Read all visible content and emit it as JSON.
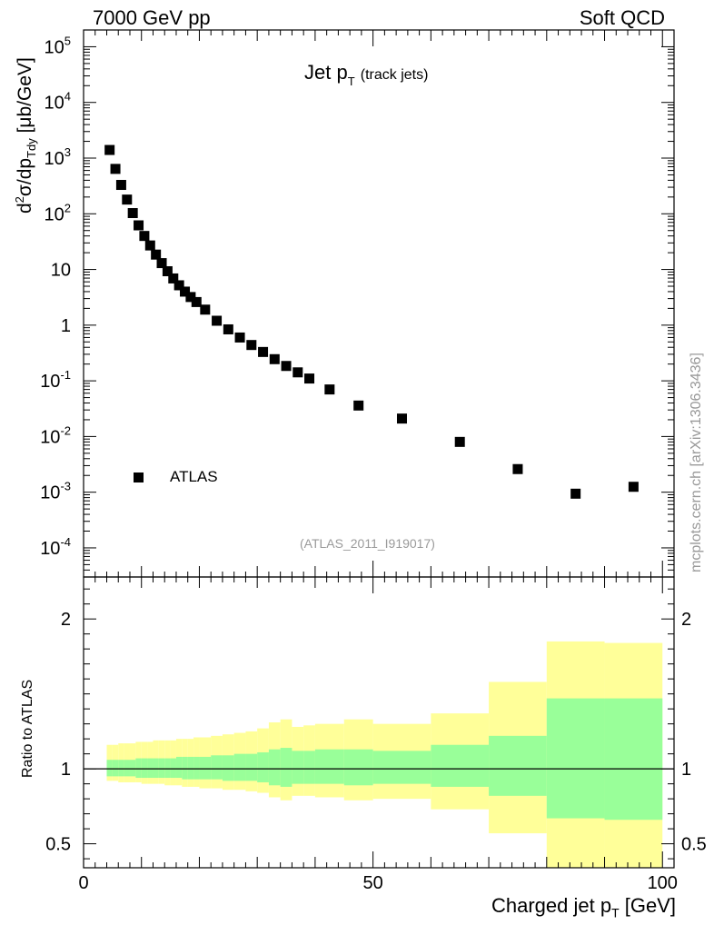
{
  "header": {
    "energy_label": "7000 GeV pp",
    "process_label": "Soft QCD"
  },
  "plot": {
    "title_main": "Jet p",
    "title_sub": "T",
    "title_note": "(track jets)",
    "analysis_id": "(ATLAS_2011_I919017)",
    "legend_entry": "ATLAS",
    "watermark": "mcplots.cern.ch [arXiv:1306.3436]",
    "ylabel_main_prefix": "d",
    "ylabel_main_sup": "2",
    "ylabel_main_mid": "σ/dp",
    "ylabel_main_sub": "Tdy",
    "ylabel_main_suffix": " [μb/GeV]",
    "ylabel_ratio": "Ratio to ATLAS",
    "xlabel_main": "Charged jet p",
    "xlabel_sub": "T",
    "xlabel_suffix": " [GeV]"
  },
  "chart_data": [
    {
      "type": "scatter",
      "title": "Jet pT (track jets)",
      "ylabel": "d²σ/dpTdy [μb/GeV]",
      "yscale": "log",
      "xlim": [
        0,
        102
      ],
      "ylim": [
        3e-05,
        200000
      ],
      "y_ticks": [
        0.0001,
        0.001,
        0.01,
        0.1,
        1,
        10,
        100,
        1000,
        10000,
        100000
      ],
      "y_tick_labels": [
        {
          "base": "10",
          "exp": "-4"
        },
        {
          "base": "10",
          "exp": "-3"
        },
        {
          "base": "10",
          "exp": "-2"
        },
        {
          "base": "10",
          "exp": "-1"
        },
        {
          "base": "1",
          "exp": ""
        },
        {
          "base": "10",
          "exp": ""
        },
        {
          "base": "10",
          "exp": "2"
        },
        {
          "base": "10",
          "exp": "3"
        },
        {
          "base": "10",
          "exp": "4"
        },
        {
          "base": "10",
          "exp": "5"
        }
      ],
      "legend_position": "bottom-left",
      "series": [
        {
          "name": "ATLAS",
          "marker": "square",
          "color": "#000000",
          "x": [
            4.5,
            5.5,
            6.5,
            7.5,
            8.5,
            9.5,
            10.5,
            11.5,
            12.5,
            13.5,
            14.5,
            15.5,
            16.5,
            17.5,
            18.5,
            19.5,
            21,
            23,
            25,
            27,
            29,
            31,
            33,
            35,
            37,
            39,
            42.5,
            47.5,
            55,
            65,
            75,
            85,
            95
          ],
          "y": [
            1400,
            640,
            330,
            180,
            103,
            62,
            40,
            27,
            18.5,
            13,
            9.3,
            6.9,
            5.2,
            4.0,
            3.2,
            2.6,
            1.9,
            1.2,
            0.84,
            0.6,
            0.44,
            0.33,
            0.245,
            0.185,
            0.142,
            0.11,
            0.07,
            0.036,
            0.021,
            0.008,
            0.0026,
            0.00094,
            0.00125
          ]
        }
      ]
    },
    {
      "type": "area",
      "ylabel": "Ratio to ATLAS",
      "xlabel": "Charged jet pT [GeV]",
      "xlim": [
        0,
        102
      ],
      "ylim": [
        0.34,
        2.28
      ],
      "x_ticks": [
        0,
        50,
        100
      ],
      "y_ticks": [
        0.5,
        1,
        2
      ],
      "reference_line": 1,
      "bins": [
        {
          "lo": 4,
          "hi": 5,
          "stat_lo": 0.95,
          "stat_hi": 1.06,
          "tot_lo": 0.92,
          "tot_hi": 1.16
        },
        {
          "lo": 5,
          "hi": 6,
          "stat_lo": 0.95,
          "stat_hi": 1.06,
          "tot_lo": 0.92,
          "tot_hi": 1.16
        },
        {
          "lo": 6,
          "hi": 7,
          "stat_lo": 0.95,
          "stat_hi": 1.06,
          "tot_lo": 0.91,
          "tot_hi": 1.17
        },
        {
          "lo": 7,
          "hi": 8,
          "stat_lo": 0.95,
          "stat_hi": 1.06,
          "tot_lo": 0.91,
          "tot_hi": 1.17
        },
        {
          "lo": 8,
          "hi": 9,
          "stat_lo": 0.95,
          "stat_hi": 1.06,
          "tot_lo": 0.91,
          "tot_hi": 1.17
        },
        {
          "lo": 9,
          "hi": 10,
          "stat_lo": 0.94,
          "stat_hi": 1.07,
          "tot_lo": 0.91,
          "tot_hi": 1.18
        },
        {
          "lo": 10,
          "hi": 11,
          "stat_lo": 0.94,
          "stat_hi": 1.07,
          "tot_lo": 0.9,
          "tot_hi": 1.18
        },
        {
          "lo": 11,
          "hi": 12,
          "stat_lo": 0.94,
          "stat_hi": 1.07,
          "tot_lo": 0.9,
          "tot_hi": 1.18
        },
        {
          "lo": 12,
          "hi": 13,
          "stat_lo": 0.94,
          "stat_hi": 1.07,
          "tot_lo": 0.9,
          "tot_hi": 1.19
        },
        {
          "lo": 13,
          "hi": 14,
          "stat_lo": 0.94,
          "stat_hi": 1.07,
          "tot_lo": 0.9,
          "tot_hi": 1.19
        },
        {
          "lo": 14,
          "hi": 15,
          "stat_lo": 0.94,
          "stat_hi": 1.07,
          "tot_lo": 0.89,
          "tot_hi": 1.19
        },
        {
          "lo": 15,
          "hi": 16,
          "stat_lo": 0.94,
          "stat_hi": 1.07,
          "tot_lo": 0.89,
          "tot_hi": 1.19
        },
        {
          "lo": 16,
          "hi": 17,
          "stat_lo": 0.94,
          "stat_hi": 1.08,
          "tot_lo": 0.89,
          "tot_hi": 1.2
        },
        {
          "lo": 17,
          "hi": 18,
          "stat_lo": 0.93,
          "stat_hi": 1.08,
          "tot_lo": 0.88,
          "tot_hi": 1.2
        },
        {
          "lo": 18,
          "hi": 19,
          "stat_lo": 0.93,
          "stat_hi": 1.08,
          "tot_lo": 0.88,
          "tot_hi": 1.2
        },
        {
          "lo": 19,
          "hi": 20,
          "stat_lo": 0.93,
          "stat_hi": 1.08,
          "tot_lo": 0.88,
          "tot_hi": 1.21
        },
        {
          "lo": 20,
          "hi": 22,
          "stat_lo": 0.93,
          "stat_hi": 1.08,
          "tot_lo": 0.87,
          "tot_hi": 1.21
        },
        {
          "lo": 22,
          "hi": 24,
          "stat_lo": 0.93,
          "stat_hi": 1.09,
          "tot_lo": 0.87,
          "tot_hi": 1.22
        },
        {
          "lo": 24,
          "hi": 26,
          "stat_lo": 0.92,
          "stat_hi": 1.09,
          "tot_lo": 0.86,
          "tot_hi": 1.23
        },
        {
          "lo": 26,
          "hi": 28,
          "stat_lo": 0.92,
          "stat_hi": 1.1,
          "tot_lo": 0.86,
          "tot_hi": 1.24
        },
        {
          "lo": 28,
          "hi": 30,
          "stat_lo": 0.92,
          "stat_hi": 1.1,
          "tot_lo": 0.85,
          "tot_hi": 1.25
        },
        {
          "lo": 30,
          "hi": 32,
          "stat_lo": 0.91,
          "stat_hi": 1.11,
          "tot_lo": 0.84,
          "tot_hi": 1.27
        },
        {
          "lo": 32,
          "hi": 34,
          "stat_lo": 0.89,
          "stat_hi": 1.13,
          "tot_lo": 0.81,
          "tot_hi": 1.31
        },
        {
          "lo": 34,
          "hi": 36,
          "stat_lo": 0.88,
          "stat_hi": 1.14,
          "tot_lo": 0.79,
          "tot_hi": 1.33
        },
        {
          "lo": 36,
          "hi": 38,
          "stat_lo": 0.9,
          "stat_hi": 1.12,
          "tot_lo": 0.82,
          "tot_hi": 1.28
        },
        {
          "lo": 38,
          "hi": 40,
          "stat_lo": 0.9,
          "stat_hi": 1.12,
          "tot_lo": 0.82,
          "tot_hi": 1.29
        },
        {
          "lo": 40,
          "hi": 45,
          "stat_lo": 0.9,
          "stat_hi": 1.13,
          "tot_lo": 0.81,
          "tot_hi": 1.3
        },
        {
          "lo": 45,
          "hi": 50,
          "stat_lo": 0.89,
          "stat_hi": 1.13,
          "tot_lo": 0.79,
          "tot_hi": 1.33
        },
        {
          "lo": 50,
          "hi": 60,
          "stat_lo": 0.9,
          "stat_hi": 1.12,
          "tot_lo": 0.8,
          "tot_hi": 1.3
        },
        {
          "lo": 60,
          "hi": 70,
          "stat_lo": 0.88,
          "stat_hi": 1.16,
          "tot_lo": 0.73,
          "tot_hi": 1.37
        },
        {
          "lo": 70,
          "hi": 80,
          "stat_lo": 0.82,
          "stat_hi": 1.22,
          "tot_lo": 0.57,
          "tot_hi": 1.58
        },
        {
          "lo": 80,
          "hi": 90,
          "stat_lo": 0.67,
          "stat_hi": 1.47,
          "tot_lo": 0.34,
          "tot_hi": 1.85
        },
        {
          "lo": 90,
          "hi": 100,
          "stat_lo": 0.66,
          "stat_hi": 1.47,
          "tot_lo": 0.34,
          "tot_hi": 1.84
        }
      ],
      "colors": {
        "stat": "#99ff99",
        "total": "#ffff99",
        "reference": "#000000"
      }
    }
  ]
}
